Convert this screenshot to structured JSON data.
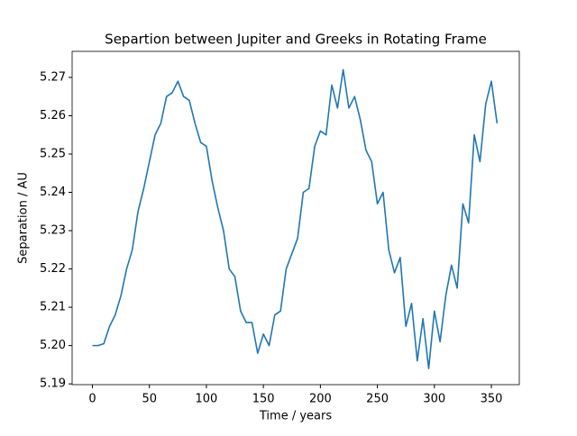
{
  "chart_data": {
    "type": "line",
    "title": "Separtion between Jupiter and Greeks in Rotating Frame",
    "x_label": "Time / years",
    "y_label": "Separation / AU",
    "x": [
      0,
      5,
      10,
      15,
      20,
      25,
      30,
      35,
      40,
      45,
      50,
      55,
      60,
      65,
      70,
      75,
      80,
      85,
      90,
      95,
      100,
      105,
      110,
      115,
      120,
      125,
      130,
      135,
      140,
      145,
      150,
      155,
      160,
      165,
      170,
      175,
      180,
      185,
      190,
      195,
      200,
      205,
      210,
      215,
      220,
      225,
      230,
      235,
      240,
      245,
      250,
      255,
      260,
      265,
      270,
      275,
      280,
      285,
      290,
      295,
      300,
      305,
      310,
      315,
      320,
      325,
      330,
      335,
      340,
      345,
      350,
      355
    ],
    "series": [
      {
        "color": "#1f77b4",
        "values": [
          5.2,
          5.2,
          5.2005,
          5.205,
          5.208,
          5.213,
          5.22,
          5.225,
          5.235,
          5.241,
          5.248,
          5.255,
          5.258,
          5.265,
          5.266,
          5.269,
          5.265,
          5.264,
          5.258,
          5.253,
          5.252,
          5.243,
          5.236,
          5.23,
          5.22,
          5.218,
          5.209,
          5.206,
          5.206,
          5.198,
          5.203,
          5.2,
          5.208,
          5.209,
          5.22,
          5.224,
          5.228,
          5.24,
          5.241,
          5.252,
          5.256,
          5.255,
          5.268,
          5.262,
          5.272,
          5.262,
          5.265,
          5.259,
          5.251,
          5.248,
          5.237,
          5.24,
          5.225,
          5.219,
          5.223,
          5.205,
          5.211,
          5.196,
          5.207,
          5.194,
          5.209,
          5.201,
          5.213,
          5.221,
          5.215,
          5.237,
          5.232,
          5.255,
          5.248,
          5.263,
          5.269,
          5.258
        ]
      }
    ],
    "xlim": [
      -17.8,
      374.5
    ],
    "ylim": [
      5.1898,
      5.2768
    ],
    "xticks": [
      0,
      50,
      100,
      150,
      200,
      250,
      300,
      350
    ],
    "yticks": [
      5.19,
      {
        "value": 5.2,
        "label": "5.20"
      },
      5.21,
      5.22,
      5.23,
      5.24,
      5.25,
      5.26,
      5.27
    ]
  }
}
